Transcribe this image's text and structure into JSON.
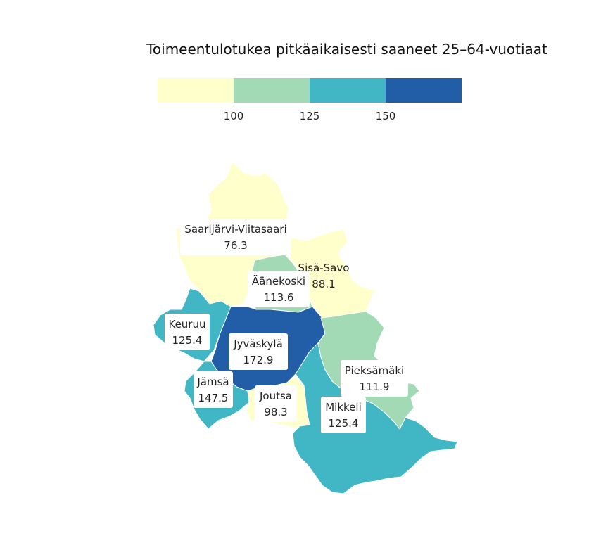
{
  "title": "Toimeentulotukea pitkäaikaisesti saaneet 25–64-vuotiaat",
  "legend": {
    "colors": [
      "#ffffcc",
      "#a1dab4",
      "#41b6c4",
      "#225ea8"
    ],
    "ticks": [
      "100",
      "125",
      "150"
    ]
  },
  "regions": [
    {
      "name": "Saarijärvi-Viitasaari",
      "value": "76.3",
      "color": "#ffffcc"
    },
    {
      "name": "Sisä-Savo",
      "value": "88.1",
      "color": "#ffffcc"
    },
    {
      "name": "Äänekoski",
      "value": "113.6",
      "color": "#a1dab4"
    },
    {
      "name": "Keuruu",
      "value": "125.4",
      "color": "#41b6c4"
    },
    {
      "name": "Jyväskylä",
      "value": "172.9",
      "color": "#225ea8"
    },
    {
      "name": "Jämsä",
      "value": "147.5",
      "color": "#41b6c4"
    },
    {
      "name": "Joutsa",
      "value": "98.3",
      "color": "#ffffcc"
    },
    {
      "name": "Pieksämäki",
      "value": "111.9",
      "color": "#a1dab4"
    },
    {
      "name": "Mikkeli",
      "value": "125.4",
      "color": "#41b6c4"
    }
  ]
}
